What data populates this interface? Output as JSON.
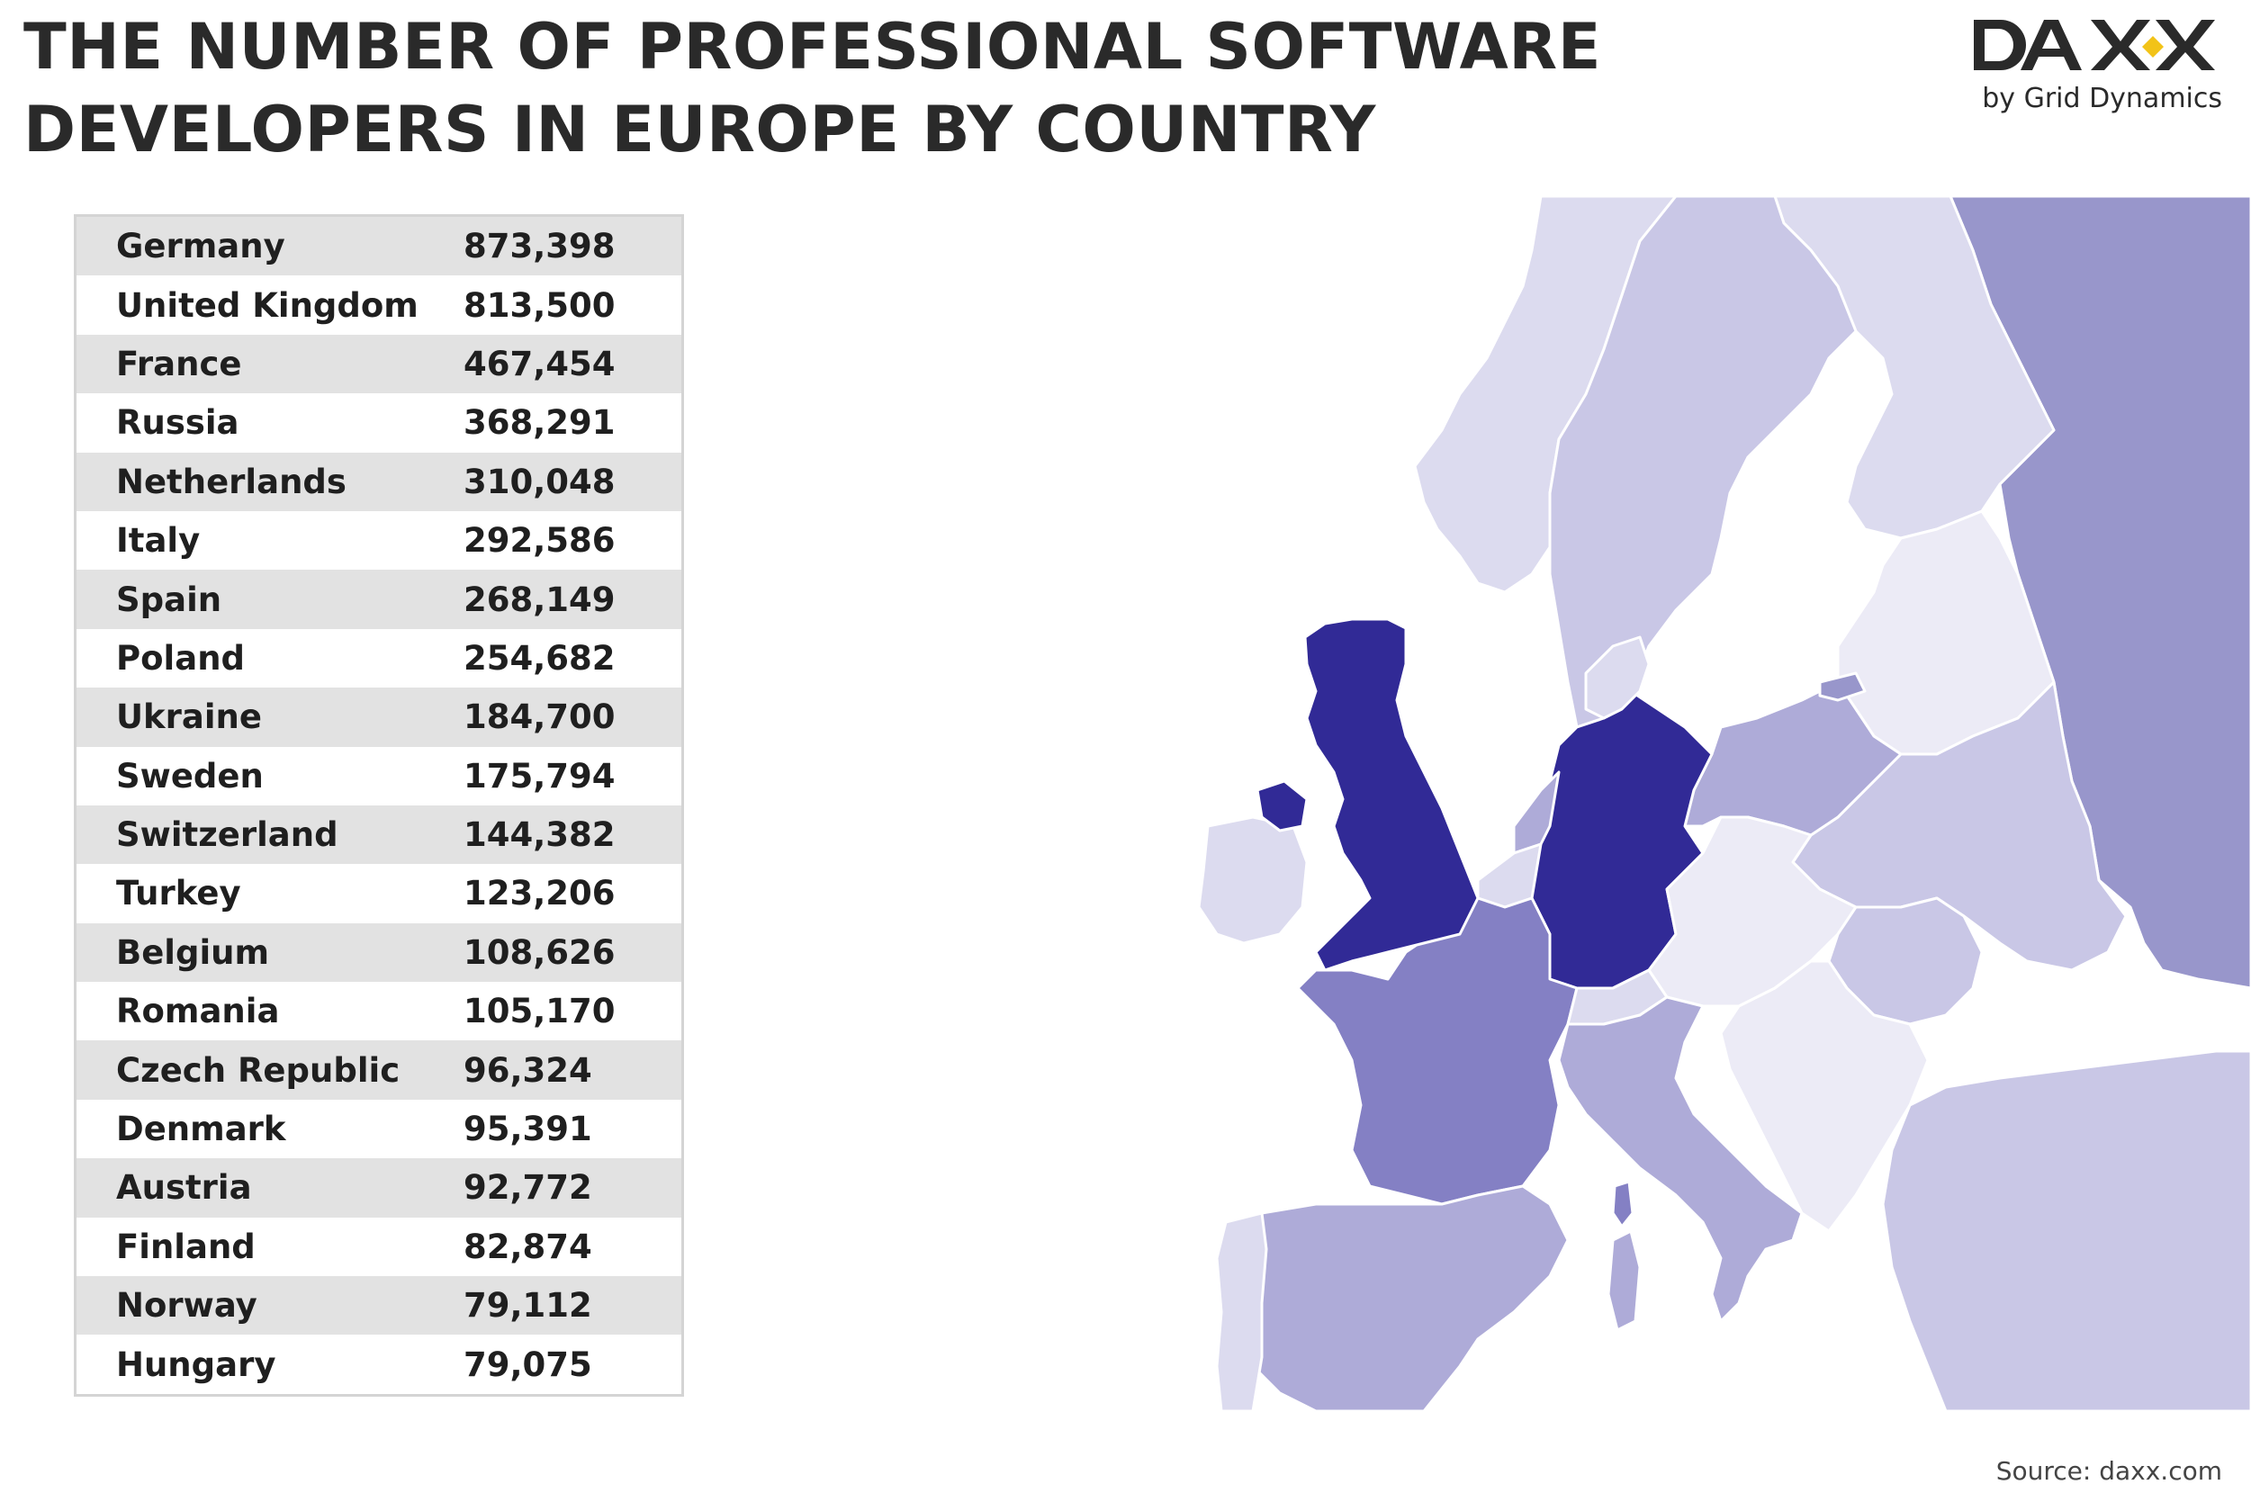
{
  "title": {
    "line1": "THE NUMBER OF PROFESSIONAL SOFTWARE",
    "line2": "DEVELOPERS IN EUROPE BY COUNTRY"
  },
  "logo": {
    "word": "DAXX",
    "tagline": "by Grid Dynamics"
  },
  "developers_by_country": [
    {
      "country": "Germany",
      "value": "873,398"
    },
    {
      "country": "United Kingdom",
      "value": "813,500"
    },
    {
      "country": "France",
      "value": "467,454"
    },
    {
      "country": "Russia",
      "value": "368,291"
    },
    {
      "country": "Netherlands",
      "value": "310,048"
    },
    {
      "country": "Italy",
      "value": "292,586"
    },
    {
      "country": "Spain",
      "value": "268,149"
    },
    {
      "country": "Poland",
      "value": "254,682"
    },
    {
      "country": "Ukraine",
      "value": "184,700"
    },
    {
      "country": "Sweden",
      "value": "175,794"
    },
    {
      "country": "Switzerland",
      "value": "144,382"
    },
    {
      "country": "Turkey",
      "value": "123,206"
    },
    {
      "country": "Belgium",
      "value": "108,626"
    },
    {
      "country": "Romania",
      "value": "105,170"
    },
    {
      "country": "Czech Republic",
      "value": "96,324"
    },
    {
      "country": "Denmark",
      "value": "95,391"
    },
    {
      "country": "Austria",
      "value": "92,772"
    },
    {
      "country": "Finland",
      "value": "82,874"
    },
    {
      "country": "Norway",
      "value": "79,112"
    },
    {
      "country": "Hungary",
      "value": "79,075"
    }
  ],
  "map": {
    "colors": {
      "darkest": "#312a96",
      "dark": "#8480c4",
      "medium": "#aeabd8",
      "light": "#c9c7e6",
      "lighter": "#dcdbef",
      "lightest": "#ecebf6",
      "sea": "#ffffff"
    }
  },
  "source": "Source: daxx.com"
}
